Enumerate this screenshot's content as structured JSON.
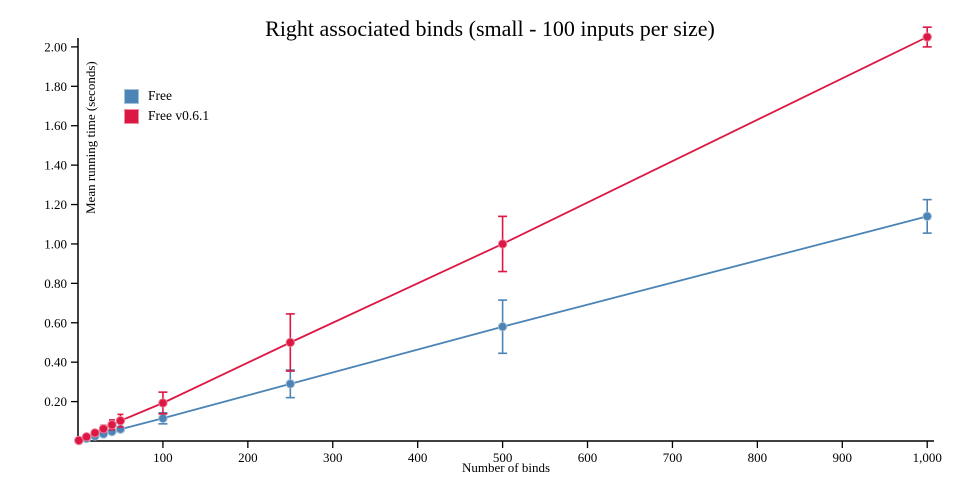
{
  "figure": {
    "background": "#ffffff"
  },
  "chart_data": {
    "type": "line",
    "title": "Right associated binds (small - 100 inputs per size)",
    "xlabel": "Number of binds",
    "ylabel": "Mean running time (seconds)",
    "xlim": [
      0,
      1008
    ],
    "ylim": [
      0,
      2.035
    ],
    "grid": false,
    "legend_position": "top-left-inside",
    "axis_color": "#000000",
    "x_ticks": [
      100,
      200,
      300,
      400,
      500,
      600,
      700,
      800,
      900,
      1000
    ],
    "x_tick_labels": [
      "100",
      "200",
      "300",
      "400",
      "500",
      "600",
      "700",
      "800",
      "900",
      "1,000"
    ],
    "y_ticks": [
      0.2,
      0.4,
      0.6,
      0.8,
      1.0,
      1.2,
      1.4,
      1.6,
      1.8,
      2.0
    ],
    "y_tick_labels": [
      "0.20",
      "0.40",
      "0.60",
      "0.80",
      "1.00",
      "1.20",
      "1.40",
      "1.60",
      "1.80",
      "2.00"
    ],
    "x": [
      1,
      10,
      20,
      30,
      40,
      50,
      100,
      250,
      500,
      1000
    ],
    "series": [
      {
        "name": "Free",
        "color": "#4c84b5",
        "values": [
          0.002,
          0.013,
          0.025,
          0.036,
          0.048,
          0.06,
          0.115,
          0.29,
          0.58,
          1.14
        ],
        "errors": [
          0.001,
          0.004,
          0.006,
          0.009,
          0.011,
          0.014,
          0.028,
          0.07,
          0.135,
          0.085
        ]
      },
      {
        "name": "Free v0.6.1",
        "color": "#dc1743",
        "values": [
          0.003,
          0.021,
          0.041,
          0.062,
          0.082,
          0.103,
          0.193,
          0.5,
          1.0,
          2.05
        ],
        "errors": [
          0.001,
          0.006,
          0.012,
          0.018,
          0.025,
          0.032,
          0.055,
          0.145,
          0.14,
          0.05
        ]
      }
    ]
  }
}
